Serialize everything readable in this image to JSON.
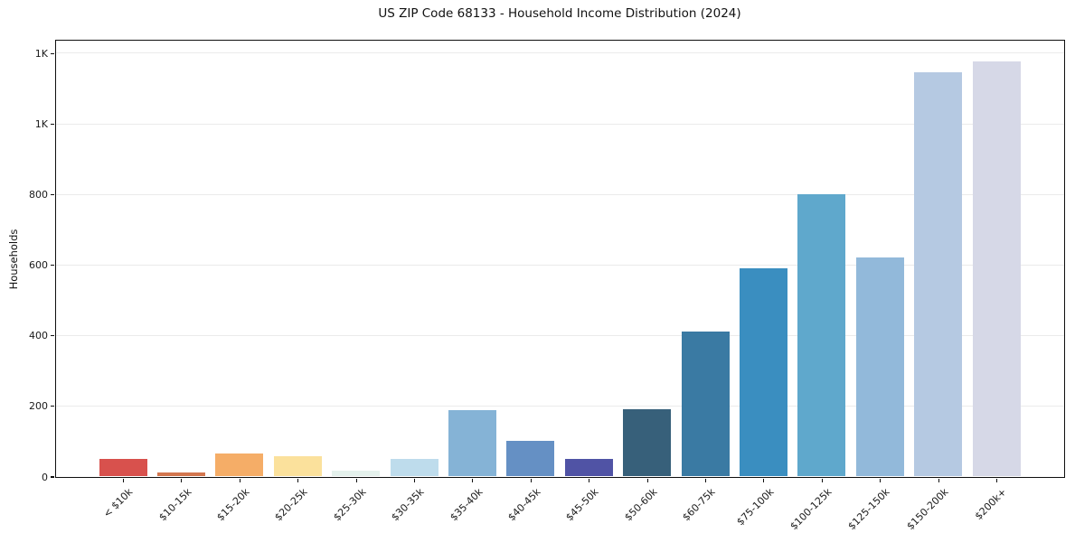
{
  "chart_data": {
    "type": "bar",
    "title": "US ZIP Code 68133 - Household Income Distribution (2024)",
    "xlabel": "",
    "ylabel": "Households",
    "categories": [
      "< $10k",
      "$10-15k",
      "$15-20k",
      "$20-25k",
      "$25-30k",
      "$30-35k",
      "$35-40k",
      "$40-45k",
      "$45-50k",
      "$50-60k",
      "$60-75k",
      "$75-100k",
      "$100-125k",
      "$125-150k",
      "$150-200k",
      "$200k+"
    ],
    "values": [
      50,
      12,
      65,
      57,
      17,
      50,
      187,
      100,
      50,
      190,
      412,
      590,
      800,
      620,
      1145,
      1178
    ],
    "bar_colors": [
      "#d8514d",
      "#d3764e",
      "#f5ad67",
      "#fbe19c",
      "#e4f1ec",
      "#bedcec",
      "#85b3d6",
      "#6590c4",
      "#5053a5",
      "#37607a",
      "#3a7aa3",
      "#3a8ec0",
      "#5fa8cc",
      "#92b9da",
      "#b5c9e2",
      "#d6d8e7"
    ],
    "yticks": [
      {
        "value": 0,
        "label": "0"
      },
      {
        "value": 200,
        "label": "200"
      },
      {
        "value": 400,
        "label": "400"
      },
      {
        "value": 600,
        "label": "600"
      },
      {
        "value": 800,
        "label": "800"
      },
      {
        "value": 1000,
        "label": "1K"
      },
      {
        "value": 1200,
        "label": "1K"
      }
    ],
    "ylim": [
      0,
      1237
    ],
    "grid": "horizontal-only",
    "legend": "none",
    "xtick_rotation_deg": 45,
    "frame_color": "#0f0f0f",
    "background_color": "#ffffff"
  }
}
